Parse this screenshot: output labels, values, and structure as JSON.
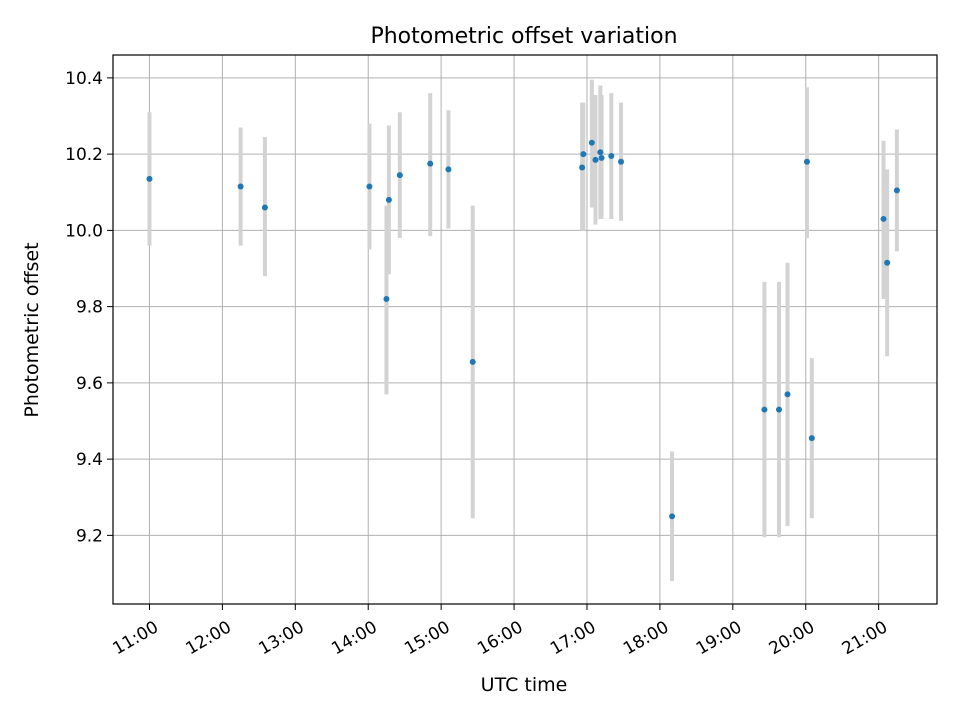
{
  "chart_data": {
    "type": "scatter",
    "title": "Photometric offset variation",
    "xlabel": "UTC time",
    "ylabel": "Photometric offset",
    "x_unit": "UTC time (hours)",
    "xlim": [
      10.5,
      21.8
    ],
    "ylim": [
      9.02,
      10.46
    ],
    "x_ticks": [
      11,
      12,
      13,
      14,
      15,
      16,
      17,
      18,
      19,
      20,
      21
    ],
    "x_tick_labels": [
      "11:00",
      "12:00",
      "13:00",
      "14:00",
      "15:00",
      "16:00",
      "17:00",
      "18:00",
      "19:00",
      "20:00",
      "21:00"
    ],
    "y_ticks": [
      9.2,
      9.4,
      9.6,
      9.8,
      10.0,
      10.2,
      10.4
    ],
    "y_tick_labels": [
      "9.2",
      "9.4",
      "9.6",
      "9.8",
      "10.0",
      "10.2",
      "10.4"
    ],
    "grid": true,
    "marker_color": "#1f77b4",
    "errorbar_color": "#d3d3d3",
    "points": [
      {
        "x": "11:00",
        "y": 10.135,
        "yerr_low": 9.96,
        "yerr_high": 10.31
      },
      {
        "x": "12:15",
        "y": 10.115,
        "yerr_low": 9.96,
        "yerr_high": 10.27
      },
      {
        "x": "12:35",
        "y": 10.06,
        "yerr_low": 9.88,
        "yerr_high": 10.245
      },
      {
        "x": "14:01",
        "y": 10.115,
        "yerr_low": 9.95,
        "yerr_high": 10.28
      },
      {
        "x": "14:15",
        "y": 9.82,
        "yerr_low": 9.57,
        "yerr_high": 10.065
      },
      {
        "x": "14:17",
        "y": 10.08,
        "yerr_low": 9.885,
        "yerr_high": 10.275
      },
      {
        "x": "14:26",
        "y": 10.145,
        "yerr_low": 9.98,
        "yerr_high": 10.31
      },
      {
        "x": "14:51",
        "y": 10.175,
        "yerr_low": 9.985,
        "yerr_high": 10.36
      },
      {
        "x": "15:06",
        "y": 10.16,
        "yerr_low": 10.005,
        "yerr_high": 10.315
      },
      {
        "x": "15:26",
        "y": 9.655,
        "yerr_low": 9.245,
        "yerr_high": 10.065
      },
      {
        "x": "16:56",
        "y": 10.165,
        "yerr_low": 10.0,
        "yerr_high": 10.335
      },
      {
        "x": "16:57",
        "y": 10.2,
        "yerr_low": 10.0,
        "yerr_high": 10.335
      },
      {
        "x": "17:04",
        "y": 10.23,
        "yerr_low": 10.06,
        "yerr_high": 10.395
      },
      {
        "x": "17:07",
        "y": 10.185,
        "yerr_low": 10.015,
        "yerr_high": 10.355
      },
      {
        "x": "17:11",
        "y": 10.205,
        "yerr_low": 10.03,
        "yerr_high": 10.38
      },
      {
        "x": "17:12",
        "y": 10.19,
        "yerr_low": 10.03,
        "yerr_high": 10.355
      },
      {
        "x": "17:20",
        "y": 10.195,
        "yerr_low": 10.03,
        "yerr_high": 10.36
      },
      {
        "x": "17:28",
        "y": 10.18,
        "yerr_low": 10.025,
        "yerr_high": 10.335
      },
      {
        "x": "18:10",
        "y": 9.25,
        "yerr_low": 9.08,
        "yerr_high": 9.42
      },
      {
        "x": "19:26",
        "y": 9.53,
        "yerr_low": 9.195,
        "yerr_high": 9.865
      },
      {
        "x": "19:38",
        "y": 9.53,
        "yerr_low": 9.195,
        "yerr_high": 9.865
      },
      {
        "x": "19:45",
        "y": 9.57,
        "yerr_low": 9.225,
        "yerr_high": 9.915
      },
      {
        "x": "20:01",
        "y": 10.18,
        "yerr_low": 9.98,
        "yerr_high": 10.375
      },
      {
        "x": "20:05",
        "y": 9.455,
        "yerr_low": 9.245,
        "yerr_high": 9.665
      },
      {
        "x": "21:04",
        "y": 10.03,
        "yerr_low": 9.82,
        "yerr_high": 10.235
      },
      {
        "x": "21:07",
        "y": 9.915,
        "yerr_low": 9.67,
        "yerr_high": 10.16
      },
      {
        "x": "21:15",
        "y": 10.105,
        "yerr_low": 9.945,
        "yerr_high": 10.265
      }
    ]
  }
}
